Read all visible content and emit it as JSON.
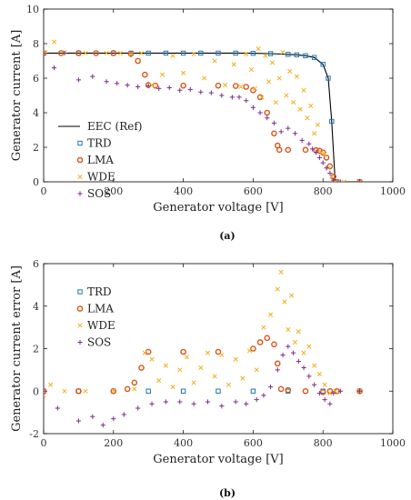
{
  "chart_data": [
    {
      "type": "scatter",
      "panel": "(a)",
      "xlabel": "Generator voltage [V]",
      "ylabel": "Generator current [A]",
      "xlim": [
        0,
        1000
      ],
      "ylim": [
        0,
        10
      ],
      "xticks": [
        0,
        200,
        400,
        600,
        800,
        1000
      ],
      "yticks": [
        0,
        2,
        4,
        6,
        8,
        10
      ],
      "legend_placement": "left",
      "grid": false,
      "series": [
        {
          "name": "EEC (Ref)",
          "marker": "line",
          "color": "#000000",
          "x": [
            0,
            100,
            200,
            250,
            300,
            350,
            400,
            450,
            500,
            550,
            600,
            650,
            700,
            725,
            750,
            775,
            800,
            815,
            825,
            835,
            905
          ],
          "y": [
            7.45,
            7.45,
            7.45,
            7.45,
            7.45,
            7.45,
            7.45,
            7.45,
            7.45,
            7.45,
            7.44,
            7.42,
            7.38,
            7.35,
            7.3,
            7.2,
            6.8,
            6.0,
            3.5,
            0,
            0
          ]
        },
        {
          "name": "TRD",
          "marker": "square",
          "color": "#1f77b4",
          "x": [
            0,
            100,
            200,
            250,
            300,
            350,
            400,
            450,
            500,
            550,
            600,
            650,
            700,
            725,
            750,
            775,
            800,
            815,
            825,
            835,
            905
          ],
          "y": [
            7.45,
            7.45,
            7.45,
            7.45,
            7.45,
            7.45,
            7.45,
            7.45,
            7.45,
            7.45,
            7.44,
            7.42,
            7.38,
            7.35,
            7.3,
            7.2,
            6.8,
            6.0,
            3.5,
            0,
            0
          ]
        },
        {
          "name": "LMA",
          "marker": "circle",
          "color": "#d95319",
          "x": [
            0,
            50,
            100,
            150,
            200,
            250,
            270,
            290,
            300,
            320,
            400,
            500,
            550,
            580,
            600,
            620,
            640,
            660,
            670,
            675,
            700,
            750,
            780,
            790,
            800,
            810,
            820,
            830,
            840,
            905
          ],
          "y": [
            7.45,
            7.45,
            7.45,
            7.45,
            7.45,
            7.4,
            7.0,
            6.2,
            5.6,
            5.57,
            5.57,
            5.57,
            5.55,
            5.5,
            5.3,
            4.9,
            4.0,
            2.8,
            2.1,
            1.85,
            1.85,
            1.85,
            1.83,
            1.8,
            1.7,
            1.4,
            0.9,
            0.3,
            0,
            0
          ]
        },
        {
          "name": "WDE",
          "marker": "x",
          "color": "#edb120",
          "x": [
            5,
            30,
            60,
            120,
            180,
            220,
            250,
            280,
            310,
            340,
            370,
            400,
            430,
            460,
            490,
            520,
            545,
            565,
            580,
            595,
            605,
            615,
            625,
            635,
            645,
            655,
            665,
            675,
            685,
            695,
            705,
            715,
            725,
            735,
            745,
            755,
            765,
            775,
            785,
            795,
            805,
            815,
            825,
            835,
            860,
            905
          ],
          "y": [
            7.5,
            8.1,
            7.5,
            7.45,
            7.45,
            7.45,
            7.4,
            7.45,
            5.6,
            6.2,
            7.3,
            6.3,
            7.4,
            6.0,
            7.0,
            5.6,
            6.8,
            5.5,
            7.4,
            6.5,
            5.4,
            7.7,
            4.9,
            7.3,
            5.8,
            6.9,
            4.6,
            6.0,
            7.5,
            5.0,
            6.4,
            4.6,
            6.1,
            4.2,
            5.3,
            3.7,
            4.4,
            2.8,
            3.3,
            1.7,
            1.6,
            0.8,
            0.3,
            0,
            0,
            0
          ]
        },
        {
          "name": "SOS",
          "marker": "plus",
          "color": "#7e2f8e",
          "x": [
            0,
            30,
            60,
            100,
            140,
            180,
            210,
            240,
            270,
            300,
            330,
            360,
            390,
            420,
            450,
            480,
            510,
            540,
            560,
            580,
            600,
            620,
            640,
            660,
            680,
            700,
            720,
            740,
            760,
            770,
            780,
            790,
            800,
            810,
            820,
            830,
            850,
            905
          ],
          "y": [
            7.45,
            6.6,
            7.45,
            5.9,
            6.1,
            5.8,
            5.7,
            5.6,
            5.5,
            5.55,
            5.4,
            5.45,
            5.3,
            5.35,
            5.2,
            5.15,
            5.0,
            4.9,
            4.9,
            4.7,
            4.3,
            4.0,
            3.7,
            3.4,
            2.9,
            3.1,
            2.8,
            2.4,
            2.2,
            1.9,
            1.7,
            1.4,
            1.1,
            0.8,
            0.5,
            0.1,
            0,
            0
          ]
        }
      ]
    },
    {
      "type": "scatter",
      "panel": "(b)",
      "xlabel": "Generator voltage [V]",
      "ylabel": "Generator current error [A]",
      "xlim": [
        0,
        1000
      ],
      "ylim": [
        -2,
        6
      ],
      "xticks": [
        0,
        200,
        400,
        600,
        800,
        1000
      ],
      "yticks": [
        -2,
        0,
        2,
        4,
        6
      ],
      "legend_placement": "left",
      "grid": false,
      "series": [
        {
          "name": "TRD",
          "marker": "square",
          "color": "#1f77b4",
          "x": [
            0,
            100,
            200,
            300,
            400,
            500,
            600,
            700,
            800,
            905
          ],
          "y": [
            0,
            0,
            0,
            0,
            0,
            0,
            0,
            0,
            0,
            0
          ]
        },
        {
          "name": "LMA",
          "marker": "circle",
          "color": "#d95319",
          "x": [
            0,
            100,
            200,
            240,
            260,
            280,
            300,
            400,
            500,
            600,
            620,
            640,
            660,
            670,
            680,
            700,
            750,
            800,
            820,
            840,
            905
          ],
          "y": [
            0,
            0,
            0,
            0.1,
            0.4,
            1.1,
            1.85,
            1.85,
            1.85,
            2.0,
            2.3,
            2.5,
            2.2,
            1.3,
            0.1,
            0.05,
            0,
            -0.05,
            0,
            0,
            0
          ]
        },
        {
          "name": "WDE",
          "marker": "x",
          "color": "#edb120",
          "x": [
            0,
            20,
            60,
            120,
            200,
            260,
            290,
            310,
            330,
            350,
            370,
            390,
            410,
            430,
            450,
            470,
            490,
            510,
            530,
            550,
            570,
            590,
            610,
            630,
            650,
            670,
            680,
            690,
            700,
            710,
            720,
            730,
            745,
            760,
            775,
            790,
            805,
            820,
            835,
            905
          ],
          "y": [
            -0.2,
            0.3,
            0,
            0,
            0,
            0.1,
            1.8,
            1.5,
            0.5,
            1.2,
            0.2,
            1.0,
            1.6,
            0.4,
            1.1,
            1.8,
            0.7,
            1.7,
            0.3,
            1.5,
            0.6,
            1.9,
            1.0,
            3.0,
            3.6,
            4.8,
            5.6,
            4.2,
            2.9,
            4.5,
            2.3,
            2.8,
            1.8,
            2.1,
            1.2,
            0.8,
            0.3,
            -0.1,
            0,
            0
          ]
        },
        {
          "name": "SOS",
          "marker": "plus",
          "color": "#7e2f8e",
          "x": [
            0,
            40,
            100,
            140,
            170,
            200,
            230,
            270,
            310,
            350,
            390,
            430,
            470,
            510,
            550,
            580,
            610,
            630,
            650,
            670,
            685,
            700,
            715,
            730,
            745,
            760,
            775,
            790,
            805,
            820,
            830,
            850,
            905
          ],
          "y": [
            0,
            -0.8,
            -1.4,
            -1.2,
            -1.6,
            -1.3,
            -1.1,
            -0.8,
            -0.6,
            -0.5,
            -0.5,
            -0.6,
            -0.5,
            -0.7,
            -0.5,
            -0.6,
            -0.4,
            -0.2,
            0.2,
            1.0,
            1.7,
            2.1,
            1.8,
            1.4,
            1.1,
            0.7,
            0.3,
            -0.1,
            -0.4,
            -0.6,
            -0.1,
            0,
            0
          ]
        }
      ]
    }
  ]
}
